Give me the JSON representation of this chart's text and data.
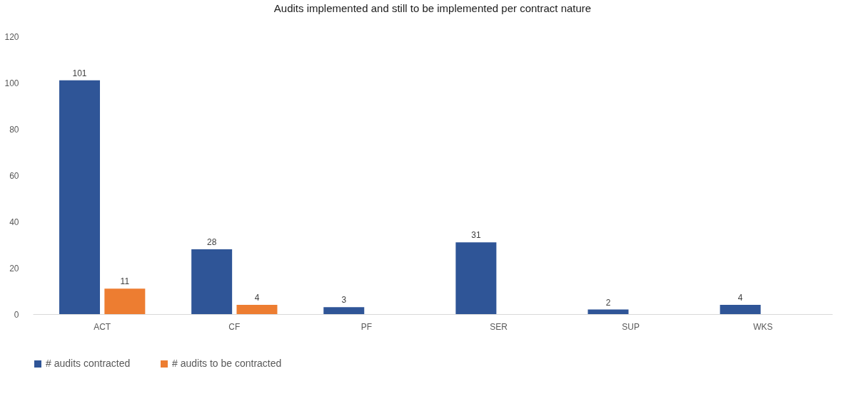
{
  "chart_data": {
    "type": "bar",
    "title": "Audits implemented and still to be implemented per contract nature",
    "categories": [
      "ACT",
      "CF",
      "PF",
      "SER",
      "SUP",
      "WKS"
    ],
    "series": [
      {
        "name": "# audits contracted",
        "color": "#2f5597",
        "values": [
          101,
          28,
          3,
          31,
          2,
          4
        ]
      },
      {
        "name": "# audits to be contracted",
        "color": "#ed7d31",
        "values": [
          11,
          4,
          null,
          null,
          null,
          null
        ]
      }
    ],
    "ylim": [
      0,
      120
    ],
    "yticks": [
      0,
      20,
      40,
      60,
      80,
      100,
      120
    ],
    "grid": false,
    "legend": "bottom",
    "data_labels": true
  }
}
